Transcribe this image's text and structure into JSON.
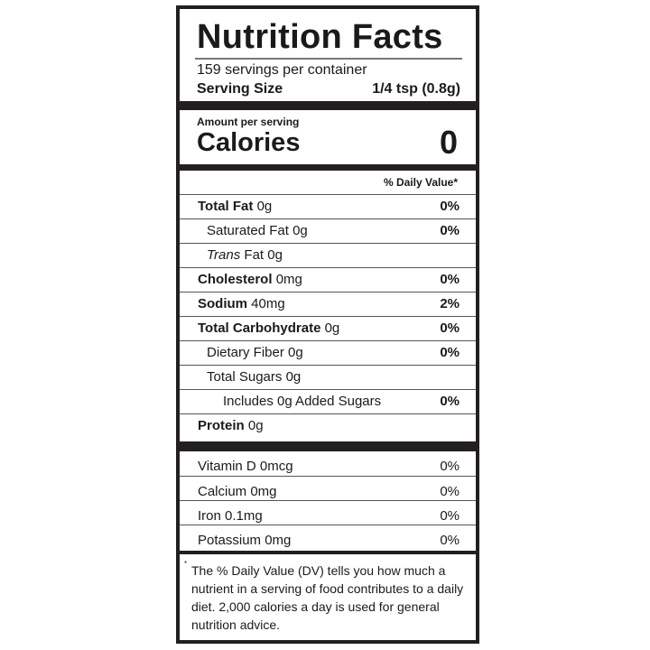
{
  "title": "Nutrition Facts",
  "servings_per_container": "159 servings per container",
  "serving_size_label": "Serving Size",
  "serving_size_value": "1/4 tsp (0.8g)",
  "amount_per_serving": "Amount per serving",
  "calories_label": "Calories",
  "calories_value": "0",
  "dv_header": "% Daily Value*",
  "nutrients": [
    {
      "name": "Total Fat",
      "amount": "0g",
      "dv": "0%",
      "bold": true,
      "indent": 0
    },
    {
      "name": "Saturated Fat",
      "amount": "0g",
      "dv": "0%",
      "bold": false,
      "indent": 1
    },
    {
      "name": "Trans",
      "name_suffix": "Fat",
      "amount": "0g",
      "dv": "",
      "bold": false,
      "indent": 1
    },
    {
      "name": "Cholesterol",
      "amount": "0mg",
      "dv": "0%",
      "bold": true,
      "indent": 0
    },
    {
      "name": "Sodium",
      "amount": "40mg",
      "dv": "2%",
      "bold": true,
      "indent": 0
    },
    {
      "name": "Total Carbohydrate",
      "amount": "0g",
      "dv": "0%",
      "bold": true,
      "indent": 0
    },
    {
      "name": "Dietary Fiber",
      "amount": "0g",
      "dv": "0%",
      "bold": false,
      "indent": 1
    },
    {
      "name": "Total Sugars",
      "amount": "0g",
      "dv": "",
      "bold": false,
      "indent": 1
    },
    {
      "name": "Includes 0g Added Sugars",
      "amount": "",
      "dv": "0%",
      "bold": false,
      "indent": 2
    },
    {
      "name": "Protein",
      "amount": "0g",
      "dv": "",
      "bold": true,
      "indent": 0
    }
  ],
  "vitamins": [
    {
      "name": "Vitamin D 0mcg",
      "dv": "0%"
    },
    {
      "name": "Calcium 0mg",
      "dv": "0%"
    },
    {
      "name": "Iron 0.1mg",
      "dv": "0%"
    },
    {
      "name": "Potassium 0mg",
      "dv": "0%"
    }
  ],
  "footnote_mark": "*",
  "footnote": "The % Daily Value (DV) tells you how much a nutrient in a serving of food contributes to a daily diet. 2,000 calories a day is used for general nutrition advice."
}
